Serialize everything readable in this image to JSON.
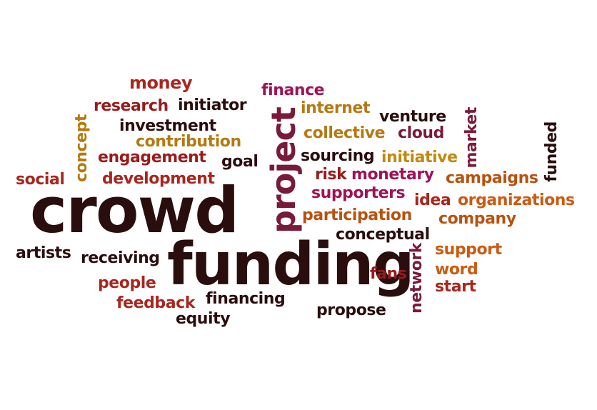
{
  "colors": {
    "dark_brown": "#2a0d0d",
    "maroon": "#7a1a3a",
    "crimson": "#9b1b1b",
    "brick": "#a8261e",
    "orange": "#cc5a10",
    "burnt_orange": "#b8520e",
    "gold": "#c08a10",
    "ochre": "#b47a10",
    "magenta": "#9e1356"
  },
  "words": [
    {
      "text": "crowd",
      "color": "dark_brown"
    },
    {
      "text": "funding",
      "color": "dark_brown"
    },
    {
      "text": "project",
      "color": "maroon"
    },
    {
      "text": "money",
      "color": "brick"
    },
    {
      "text": "finance",
      "color": "magenta"
    },
    {
      "text": "research",
      "color": "crimson"
    },
    {
      "text": "initiator",
      "color": "dark_brown"
    },
    {
      "text": "internet",
      "color": "ochre"
    },
    {
      "text": "venture",
      "color": "dark_brown"
    },
    {
      "text": "market",
      "color": "maroon"
    },
    {
      "text": "concept",
      "color": "ochre"
    },
    {
      "text": "investment",
      "color": "dark_brown"
    },
    {
      "text": "collective",
      "color": "ochre"
    },
    {
      "text": "cloud",
      "color": "maroon"
    },
    {
      "text": "funded",
      "color": "dark_brown"
    },
    {
      "text": "contribution",
      "color": "ochre"
    },
    {
      "text": "engagement",
      "color": "crimson"
    },
    {
      "text": "goal",
      "color": "dark_brown"
    },
    {
      "text": "sourcing",
      "color": "dark_brown"
    },
    {
      "text": "initiative",
      "color": "gold"
    },
    {
      "text": "social",
      "color": "brick"
    },
    {
      "text": "development",
      "color": "brick"
    },
    {
      "text": "risk",
      "color": "crimson"
    },
    {
      "text": "monetary",
      "color": "magenta"
    },
    {
      "text": "campaigns",
      "color": "burnt_orange"
    },
    {
      "text": "supporters",
      "color": "magenta"
    },
    {
      "text": "idea",
      "color": "brick"
    },
    {
      "text": "organizations",
      "color": "orange"
    },
    {
      "text": "participation",
      "color": "burnt_orange"
    },
    {
      "text": "company",
      "color": "burnt_orange"
    },
    {
      "text": "conceptual",
      "color": "dark_brown"
    },
    {
      "text": "artists",
      "color": "dark_brown"
    },
    {
      "text": "receiving",
      "color": "dark_brown"
    },
    {
      "text": "network",
      "color": "maroon"
    },
    {
      "text": "support",
      "color": "orange"
    },
    {
      "text": "fans",
      "color": "crimson"
    },
    {
      "text": "word",
      "color": "orange"
    },
    {
      "text": "people",
      "color": "brick"
    },
    {
      "text": "start",
      "color": "brick"
    },
    {
      "text": "feedback",
      "color": "brick"
    },
    {
      "text": "financing",
      "color": "dark_brown"
    },
    {
      "text": "propose",
      "color": "dark_brown"
    },
    {
      "text": "equity",
      "color": "dark_brown"
    }
  ]
}
